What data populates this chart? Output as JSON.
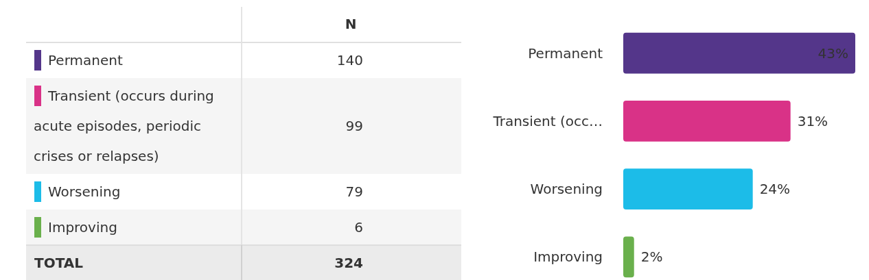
{
  "chart_data": [
    {
      "type": "other",
      "categories": [
        "Permanent",
        "Transient (occurs during acute episodes, periodic crises or relapses)",
        "Worsening",
        "Improving"
      ],
      "values": [
        140,
        99,
        79,
        6
      ],
      "data_labels": true,
      "annotations": [
        "N",
        "TOTAL",
        "324"
      ]
    },
    {
      "type": "bar",
      "orientation": "horizontal",
      "categories": [
        "Permanent",
        "Transient (occ…",
        "Worsening",
        "Improving"
      ],
      "values": [
        43,
        31,
        24,
        2
      ],
      "colors": [
        "#54368a",
        "#d93287",
        "#1cbce8",
        "#6ab04c"
      ],
      "value_labels": [
        "43%",
        "31%",
        "24%",
        "2%"
      ]
    }
  ]
}
